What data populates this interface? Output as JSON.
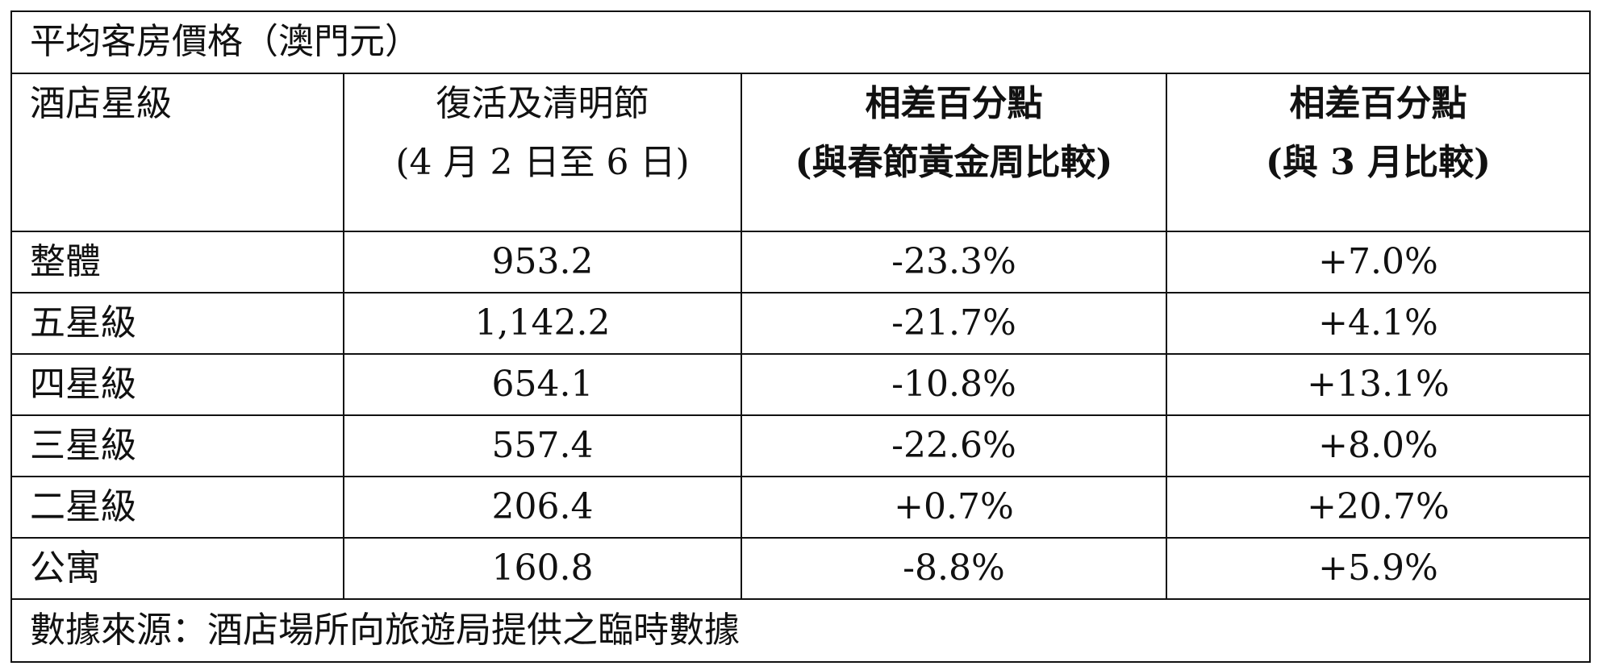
{
  "table": {
    "title": "平均客房價格（澳門元）",
    "headers": {
      "col1": "酒店星級",
      "col2_line1": "復活及清明節",
      "col2_line2": "(4 月 2 日至 6 日)",
      "col3_line1": "相差百分點",
      "col3_line2": "(與春節黃金周比較)",
      "col4_line1": "相差百分點",
      "col4_line2": "(與 3 月比較)"
    },
    "rows": [
      {
        "category": "整體",
        "price": "953.2",
        "vs_cny": "-23.3%",
        "vs_march": "+7.0%"
      },
      {
        "category": "五星級",
        "price": "1,142.2",
        "vs_cny": "-21.7%",
        "vs_march": "+4.1%"
      },
      {
        "category": "四星級",
        "price": "654.1",
        "vs_cny": "-10.8%",
        "vs_march": "+13.1%"
      },
      {
        "category": "三星級",
        "price": "557.4",
        "vs_cny": "-22.6%",
        "vs_march": "+8.0%"
      },
      {
        "category": "二星級",
        "price": "206.4",
        "vs_cny": "+0.7%",
        "vs_march": "+20.7%"
      },
      {
        "category": "公寓",
        "price": "160.8",
        "vs_cny": "-8.8%",
        "vs_march": "+5.9%"
      }
    ],
    "footer": "數據來源：酒店場所向旅遊局提供之臨時數據"
  }
}
